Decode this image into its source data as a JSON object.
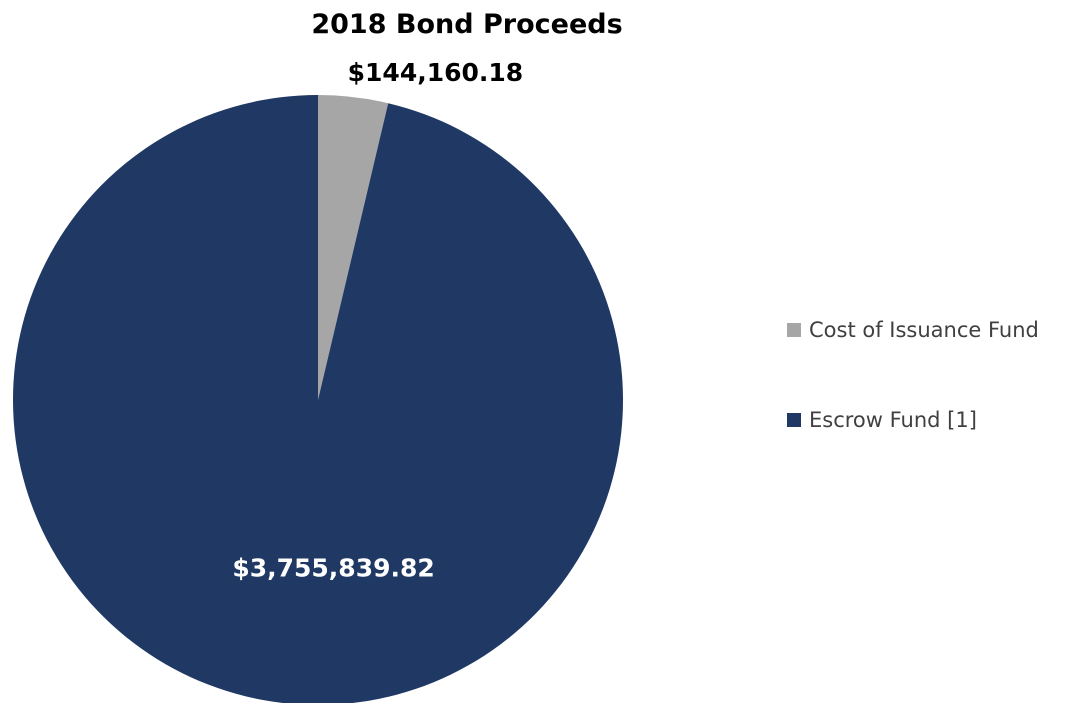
{
  "chart_data": {
    "type": "pie",
    "title": "2018 Bond Proceeds",
    "categories": [
      "Cost of Issuance Fund",
      "Escrow Fund [1]"
    ],
    "values": [
      144160.18,
      3755839.82
    ],
    "labels": [
      "$144,160.18",
      "$3,755,839.82"
    ],
    "colors": [
      "#a6a6a6",
      "#203864"
    ],
    "label_colors": [
      "#000000",
      "#ffffff"
    ],
    "legend_position": "right",
    "start_angle_deg": 0,
    "direction": "clockwise"
  }
}
